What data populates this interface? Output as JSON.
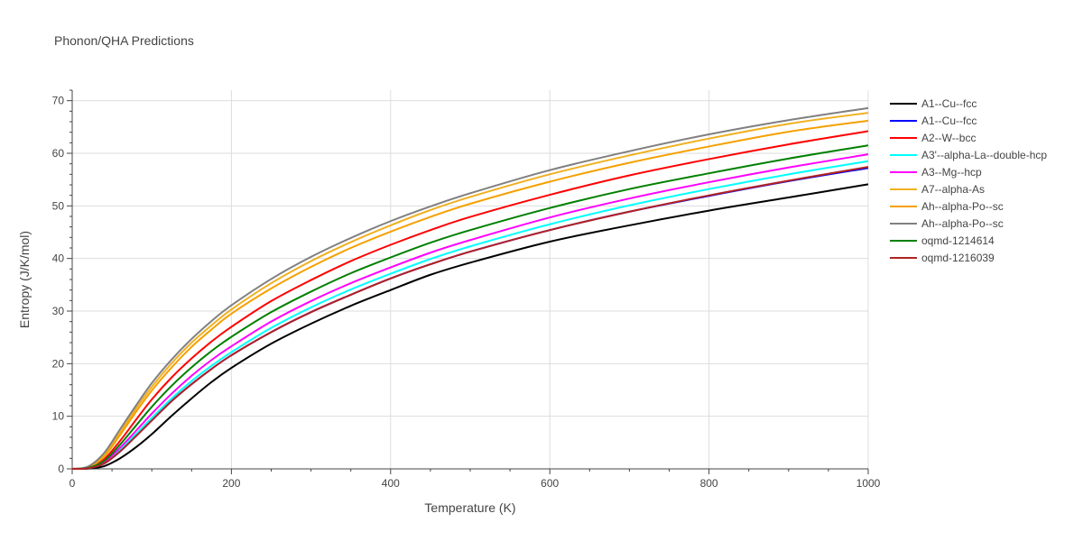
{
  "chart_data": {
    "type": "line",
    "title": "Phonon/QHA Predictions",
    "xlabel": "Temperature (K)",
    "ylabel": "Entropy (J/K/mol)",
    "xlim": [
      0,
      1000
    ],
    "ylim": [
      0,
      72
    ],
    "xticks": [
      0,
      200,
      400,
      600,
      800,
      1000
    ],
    "yticks": [
      0,
      10,
      20,
      30,
      40,
      50,
      60,
      70
    ],
    "grid": true,
    "legend_position": "right",
    "x": [
      0,
      20,
      40,
      60,
      80,
      100,
      125,
      150,
      175,
      200,
      250,
      300,
      350,
      400,
      450,
      500,
      600,
      700,
      800,
      900,
      1000
    ],
    "series": [
      {
        "name": "A1--Cu--fcc",
        "color": "#000000",
        "values": [
          0,
          0.05,
          0.5,
          2.0,
          4.1,
          6.6,
          10.1,
          13.4,
          16.5,
          19.2,
          23.8,
          27.6,
          31.0,
          34.0,
          36.9,
          39.2,
          43.2,
          46.3,
          49.1,
          51.6,
          54.1
        ]
      },
      {
        "name": "A1--Cu--fcc",
        "color": "#0000ff",
        "values": [
          0,
          0.1,
          1.0,
          3.3,
          6.2,
          9.2,
          12.9,
          16.1,
          19.0,
          21.6,
          26.0,
          29.8,
          33.1,
          36.2,
          38.9,
          41.3,
          45.4,
          48.9,
          51.9,
          54.7,
          57.2
        ]
      },
      {
        "name": "A2--W--bcc",
        "color": "#ff0000",
        "values": [
          0,
          0.2,
          1.8,
          5.3,
          9.3,
          13.2,
          17.4,
          21.0,
          24.2,
          27.0,
          31.9,
          35.9,
          39.5,
          42.6,
          45.4,
          47.9,
          52.1,
          55.8,
          58.9,
          61.7,
          64.2
        ]
      },
      {
        "name": "A3'--alpha-La--double-hcp",
        "color": "#00ffff",
        "values": [
          0,
          0.12,
          1.1,
          3.6,
          6.6,
          9.7,
          13.4,
          16.7,
          19.6,
          22.2,
          26.8,
          30.7,
          34.1,
          37.1,
          39.9,
          42.3,
          46.5,
          50.1,
          53.2,
          56.0,
          58.5
        ]
      },
      {
        "name": "A3--Mg--hcp",
        "color": "#ff00ff",
        "values": [
          0,
          0.15,
          1.3,
          4.0,
          7.2,
          10.5,
          14.3,
          17.7,
          20.7,
          23.3,
          28.0,
          31.9,
          35.3,
          38.3,
          41.1,
          43.5,
          47.8,
          51.4,
          54.5,
          57.3,
          59.8
        ]
      },
      {
        "name": "A7--alpha-As",
        "color": "#f0b020",
        "values": [
          0,
          0.35,
          2.6,
          6.9,
          11.4,
          15.6,
          20.1,
          24.0,
          27.3,
          30.3,
          35.3,
          39.5,
          43.1,
          46.3,
          49.2,
          51.7,
          56.0,
          59.6,
          62.8,
          65.6,
          67.7
        ]
      },
      {
        "name": "Ah--alpha-Po--sc",
        "color": "#f5a000",
        "values": [
          0,
          0.3,
          2.3,
          6.4,
          10.8,
          14.9,
          19.3,
          23.2,
          26.5,
          29.5,
          34.3,
          38.4,
          42.0,
          45.1,
          47.9,
          50.4,
          54.6,
          58.2,
          61.3,
          64.1,
          66.2
        ]
      },
      {
        "name": "Ah--alpha-Po--sc",
        "color": "#808080",
        "values": [
          0,
          0.45,
          3.0,
          7.5,
          12.0,
          16.3,
          20.8,
          24.7,
          28.1,
          31.1,
          36.1,
          40.3,
          43.9,
          47.1,
          49.9,
          52.4,
          56.8,
          60.4,
          63.6,
          66.3,
          68.6
        ]
      },
      {
        "name": "oqmd-1214614",
        "color": "#008000",
        "values": [
          0,
          0.18,
          1.5,
          4.6,
          8.2,
          11.8,
          15.8,
          19.3,
          22.4,
          25.1,
          29.8,
          33.7,
          37.2,
          40.2,
          43.0,
          45.4,
          49.6,
          53.2,
          56.2,
          59.0,
          61.5
        ]
      },
      {
        "name": "oqmd-1216039",
        "color": "#b22222",
        "values": [
          0,
          0.1,
          1.0,
          3.3,
          6.2,
          9.2,
          12.9,
          16.1,
          19.0,
          21.6,
          26.0,
          29.8,
          33.1,
          36.2,
          38.9,
          41.3,
          45.4,
          48.9,
          52.0,
          54.8,
          57.4
        ]
      }
    ]
  }
}
